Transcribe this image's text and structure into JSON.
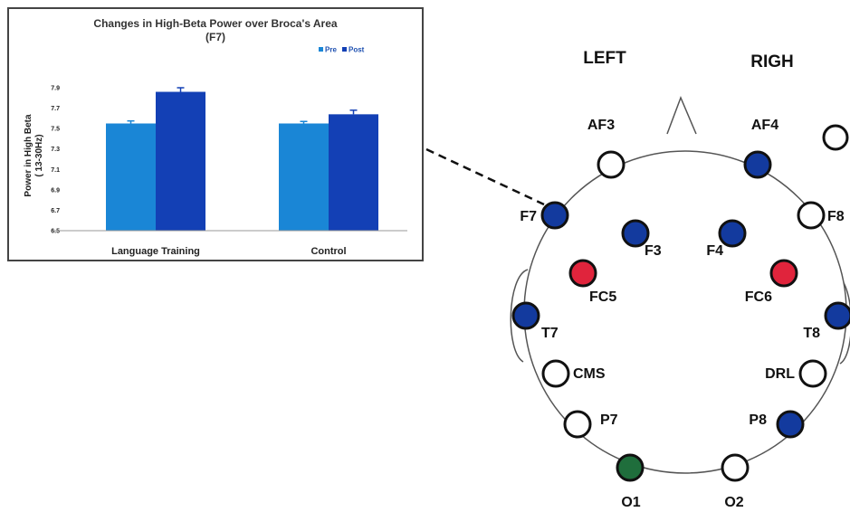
{
  "chart_data": {
    "type": "bar",
    "title": "Changes in High-Beta Power over Broca's Area",
    "subtitle": "(F7)",
    "ylabel_line1": "Power in High Beta",
    "ylabel_line2": "( 13-30Hz)",
    "xlabel": "",
    "categories": [
      "Language Training",
      "Control"
    ],
    "series": [
      {
        "name": "Pre",
        "values": [
          7.55,
          7.55
        ],
        "errors": [
          0.025,
          0.02
        ],
        "color": "#1a86d6"
      },
      {
        "name": "Post",
        "values": [
          7.86,
          7.64
        ],
        "errors": [
          0.04,
          0.04
        ],
        "color": "#1340b5"
      }
    ],
    "ylim": [
      6.5,
      7.9
    ],
    "yticks": [
      "7.9",
      "7.7",
      "7.5",
      "7.3",
      "7.1",
      "6.9",
      "6.7",
      "6.5"
    ],
    "legend_position": "top-right",
    "grid": false
  },
  "head_map": {
    "left_label": "LEFT",
    "right_label": "RIGH",
    "colors": {
      "blue": "#133a9e",
      "red": "#e0243c",
      "green": "#1f6e3c",
      "white": "#ffffff"
    },
    "electrodes": [
      {
        "label": "AF3",
        "color": "white"
      },
      {
        "label": "AF4",
        "color": "blue"
      },
      {
        "label": "F7",
        "color": "blue"
      },
      {
        "label": "F8",
        "color": "white"
      },
      {
        "label": "F3",
        "color": "blue"
      },
      {
        "label": "F4",
        "color": "blue"
      },
      {
        "label": "FC5",
        "color": "red"
      },
      {
        "label": "FC6",
        "color": "red"
      },
      {
        "label": "T7",
        "color": "blue"
      },
      {
        "label": "T8",
        "color": "blue"
      },
      {
        "label": "CMS",
        "color": "white"
      },
      {
        "label": "DRL",
        "color": "white"
      },
      {
        "label": "P7",
        "color": "white"
      },
      {
        "label": "P8",
        "color": "blue"
      },
      {
        "label": "O1",
        "color": "green"
      },
      {
        "label": "O2",
        "color": "white"
      }
    ],
    "extra_marker_color": "white"
  }
}
